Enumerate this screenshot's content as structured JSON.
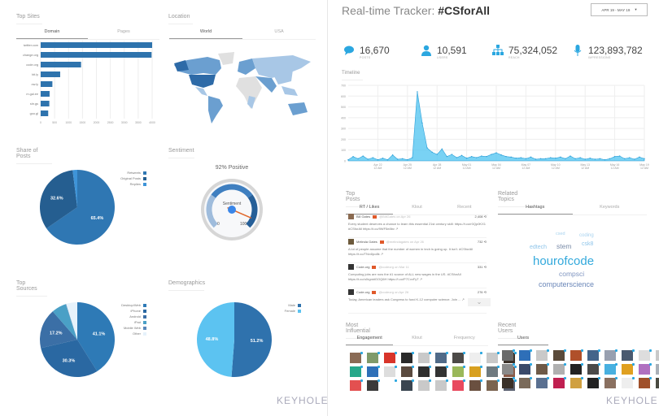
{
  "top_sites": {
    "title": "Top Sites",
    "tabs": [
      "Domain",
      "Pages"
    ],
    "chart_data": {
      "type": "bar",
      "orientation": "horizontal",
      "categories": [
        "twitter.com",
        "change.org",
        "code.org",
        "bit.ly",
        "ow.ly",
        "m.gal.ee",
        "shr.gs",
        "goo.gl"
      ],
      "values": [
        4000,
        3980,
        1450,
        700,
        420,
        320,
        310,
        270
      ],
      "xlim": [
        0,
        4000
      ],
      "xticks": [
        "0",
        "500",
        "1000",
        "1500",
        "2000",
        "2500",
        "3000",
        "3500",
        "4000"
      ],
      "grid": true,
      "color": "#2e73ad"
    }
  },
  "location": {
    "title": "Location",
    "tabs": [
      "World",
      "USA"
    ],
    "colors": {
      "high": "#2d6aa7",
      "mid": "#6b9fd0",
      "low": "#a8c7e6",
      "none": "#e0e0e0"
    }
  },
  "share_of_posts": {
    "title": "Share of Posts",
    "chart_data": {
      "type": "pie",
      "slices": [
        {
          "name": "Retweets",
          "value": 65.4,
          "label": "65.4%",
          "color": "#2f77b3"
        },
        {
          "name": "Original Posts",
          "value": 32.6,
          "label": "32.6%",
          "color": "#255e90"
        },
        {
          "name": "Replies",
          "value": 2.0,
          "label": "",
          "color": "#3e94d8"
        }
      ],
      "legend": "right"
    }
  },
  "sentiment": {
    "title": "Sentiment",
    "headline": "92% Positive",
    "gauge_label": "Sentiment",
    "value": 92,
    "min_label": "0",
    "max_label": "100"
  },
  "top_sources": {
    "title": "Top Sources",
    "chart_data": {
      "type": "pie",
      "slices": [
        {
          "name": "Desktop/Web",
          "value": 41.1,
          "label": "41.1%",
          "color": "#2e7ab6"
        },
        {
          "name": "iPhone",
          "value": 30.3,
          "label": "30.3%",
          "color": "#2a68a2"
        },
        {
          "name": "Android",
          "value": 17.2,
          "label": "17.2%",
          "color": "#3b6fa6"
        },
        {
          "name": "iPad",
          "value": 6.4,
          "label": "",
          "color": "#4aa0c6"
        },
        {
          "name": "Mobile Web",
          "value": 0.2,
          "label": "",
          "color": "#5a88ba"
        },
        {
          "name": "Other",
          "value": 4.8,
          "label": "",
          "color": "#e6f2fb"
        }
      ],
      "legend": "right"
    }
  },
  "demographics": {
    "title": "Demographics",
    "chart_data": {
      "type": "pie",
      "slices": [
        {
          "name": "Male",
          "value": 51.2,
          "label": "51.2%",
          "color": "#2f72ad"
        },
        {
          "name": "Female",
          "value": 48.8,
          "label": "48.8%",
          "color": "#5cc3f1"
        }
      ],
      "legend": "right"
    }
  },
  "brand": "KEYHOLE",
  "header": {
    "title_prefix": "Real-time Tracker: ",
    "hashtag": "#CSforAll",
    "date_range": "APR 19 - MAY 19",
    "dropdown_glyph": "▾"
  },
  "stats": [
    {
      "icon": "speech-bubble-icon",
      "value": "16,670",
      "label": "POSTS"
    },
    {
      "icon": "user-icon",
      "value": "10,591",
      "label": "USERS"
    },
    {
      "icon": "network-icon",
      "value": "75,324,052",
      "label": "REACH"
    },
    {
      "icon": "microphone-icon",
      "value": "123,893,782",
      "label": "IMPRESSIONS"
    }
  ],
  "accent": "#2ba7e0",
  "timeline": {
    "title": "Timeline",
    "chart_data": {
      "type": "area",
      "ylim": [
        0,
        700
      ],
      "yticks": [
        "0",
        "100",
        "200",
        "300",
        "400",
        "500",
        "600",
        "700"
      ],
      "xticks": [
        "Apr 22|12 AM",
        "Apr 25|12 AM",
        "Apr 28|12 AM",
        "May 01|12 AM",
        "May 04|12 AM",
        "May 07|12 AM",
        "May 10|12 AM",
        "May 13|12 AM",
        "May 16|12 AM",
        "May 19|12 AM"
      ],
      "x": [
        "Apr 19 12 AM",
        "Apr 19 12 PM",
        "Apr 20 12 AM",
        "Apr 20 12 PM",
        "Apr 21 12 AM",
        "Apr 21 12 PM",
        "Apr 22 12 AM",
        "Apr 22 12 PM",
        "Apr 23 12 AM",
        "Apr 23 12 PM",
        "Apr 24 12 AM",
        "Apr 24 12 PM",
        "Apr 25 12 AM",
        "Apr 25 12 PM",
        "Apr 26 12 AM",
        "Apr 26 12 PM",
        "Apr 27 12 AM",
        "Apr 27 12 PM",
        "Apr 28 12 AM",
        "Apr 28 12 PM",
        "Apr 29 12 AM",
        "Apr 29 12 PM",
        "Apr 30 12 AM",
        "Apr 30 12 PM",
        "May 01 12 AM",
        "May 01 12 PM",
        "May 02 12 AM",
        "May 02 12 PM",
        "May 03 12 AM",
        "May 03 12 PM",
        "May 04 12 AM",
        "May 04 12 PM",
        "May 05 12 AM",
        "May 05 12 PM",
        "May 06 12 AM",
        "May 06 12 PM",
        "May 07 12 AM",
        "May 07 12 PM",
        "May 08 12 AM",
        "May 08 12 PM",
        "May 09 12 AM",
        "May 09 12 PM",
        "May 10 12 AM",
        "May 10 12 PM",
        "May 11 12 AM",
        "May 11 12 PM",
        "May 12 12 AM",
        "May 12 12 PM",
        "May 13 12 AM",
        "May 13 12 PM",
        "May 14 12 AM",
        "May 14 12 PM",
        "May 15 12 AM",
        "May 15 12 PM",
        "May 16 12 AM",
        "May 16 12 PM",
        "May 17 12 AM",
        "May 17 12 PM",
        "May 18 12 AM",
        "May 18 12 PM",
        "May 19 12 AM"
      ],
      "y": [
        10,
        40,
        20,
        45,
        15,
        30,
        10,
        25,
        10,
        55,
        15,
        20,
        10,
        30,
        640,
        350,
        120,
        80,
        60,
        110,
        40,
        60,
        30,
        50,
        25,
        40,
        30,
        45,
        40,
        60,
        75,
        55,
        40,
        35,
        25,
        30,
        20,
        35,
        15,
        20,
        20,
        30,
        25,
        35,
        20,
        45,
        20,
        30,
        15,
        25,
        15,
        20,
        10,
        20,
        40,
        45,
        20,
        30,
        15,
        35,
        20
      ],
      "grid": true,
      "color": "#4cc3f0"
    }
  },
  "top_posts": {
    "title": "Top Posts",
    "tabs": [
      "RT / Likes",
      "Klout",
      "Recent"
    ],
    "posts": [
      {
        "name": "Bill Gates",
        "meta": "@BillGates on Apr 26",
        "count": "2,408 ⟲",
        "text": "Every student deserves a chance to learn this essential 21st century skill: https://t.co/r0Qp0KX1 #CSforAll https://t.co/9WF5e8bv ↗",
        "avatar": "#8a6a50"
      },
      {
        "name": "Melinda Gates",
        "meta": "@melindagates on Apr 26",
        "count": "732 ⟲",
        "text": "A lot of people assume that the number of women in tech is going up. It isn't. #CSforAll https://t.co/TNv4lpo8k ↗",
        "avatar": "#6d5a3c"
      },
      {
        "name": "Code.org",
        "meta": "@codeorg on Mar 11",
        "count": "331 ⟲",
        "text": "Computing jobs are now the #1 source of ALL new wages in the US. #CSforAll https://t.co/u0rgnidGOQ6H https://t.co/P7CvvFyT ↗",
        "avatar": "#333333"
      },
      {
        "name": "Code.org",
        "meta": "@codeorg on Apr 26",
        "count": "276 ⟲",
        "text": "Today, American leaders ask Congress to fund K-12 computer science. Join ... ↗",
        "avatar": "#333333"
      }
    ]
  },
  "related_topics": {
    "title": "Related Topics",
    "tabs": [
      "Hashtags",
      "Keywords"
    ],
    "words": [
      {
        "text": "hourofcode",
        "color": "#33a9dc"
      },
      {
        "text": "computerscience",
        "color": "#6a86b8"
      },
      {
        "text": "compsci",
        "color": "#7f95c0"
      },
      {
        "text": "stem",
        "color": "#7a8ca8"
      },
      {
        "text": "edtech",
        "color": "#8fc5ea"
      },
      {
        "text": "csk8",
        "color": "#8fc5ea"
      },
      {
        "text": "coding",
        "color": "#a8d3ef"
      },
      {
        "text": "csed",
        "color": "#a8d3ef"
      }
    ]
  },
  "most_influential": {
    "title": "Most Influential",
    "tabs": [
      "Engagement",
      "Klout",
      "Frequency"
    ],
    "avatars": [
      "#8a6b55",
      "#7f9a6a",
      "#d8342a",
      "#2a2a2a",
      "#c9c9c9",
      "#506a88",
      "#4c4a48",
      "#eeeeee",
      "#c9c9c9",
      "#3a3028",
      "#27a88a",
      "#2e70b8",
      "#dddddd",
      "#5a4a3f",
      "#2e2e2e",
      "#333333",
      "#9ab85a",
      "#d8a020",
      "#6e7a80",
      "#8a5a48",
      "#e35050",
      "#3a3a3a",
      "#ffffff",
      "#3a4550",
      "#c9c9c9",
      "#c9c9c9",
      "#e84a5f",
      "#6a5040",
      "#7a6450",
      "#5a6070"
    ]
  },
  "recent_users": {
    "title": "Recent Users",
    "tabs": [
      "Users"
    ],
    "avatars": [
      "#6a6a6a",
      "#2e6fb8",
      "#c9c9c9",
      "#5a4a3a",
      "#b0502a",
      "#44648a",
      "#98a0b0",
      "#4a5a70",
      "#dddddd",
      "#c9c9c9",
      "#8a8a8a",
      "#3a4a6a",
      "#6e5a48",
      "#b0b0b0",
      "#222222",
      "#4a4a4a",
      "#48b0e0",
      "#e0a020",
      "#b070c0",
      "#aab0b8",
      "#3a3028",
      "#7a6a5a",
      "#5a7090",
      "#c02050",
      "#d0a040",
      "#222222",
      "#8a7060",
      "#eeeeee",
      "#a0502a",
      "#4a4a40"
    ]
  }
}
